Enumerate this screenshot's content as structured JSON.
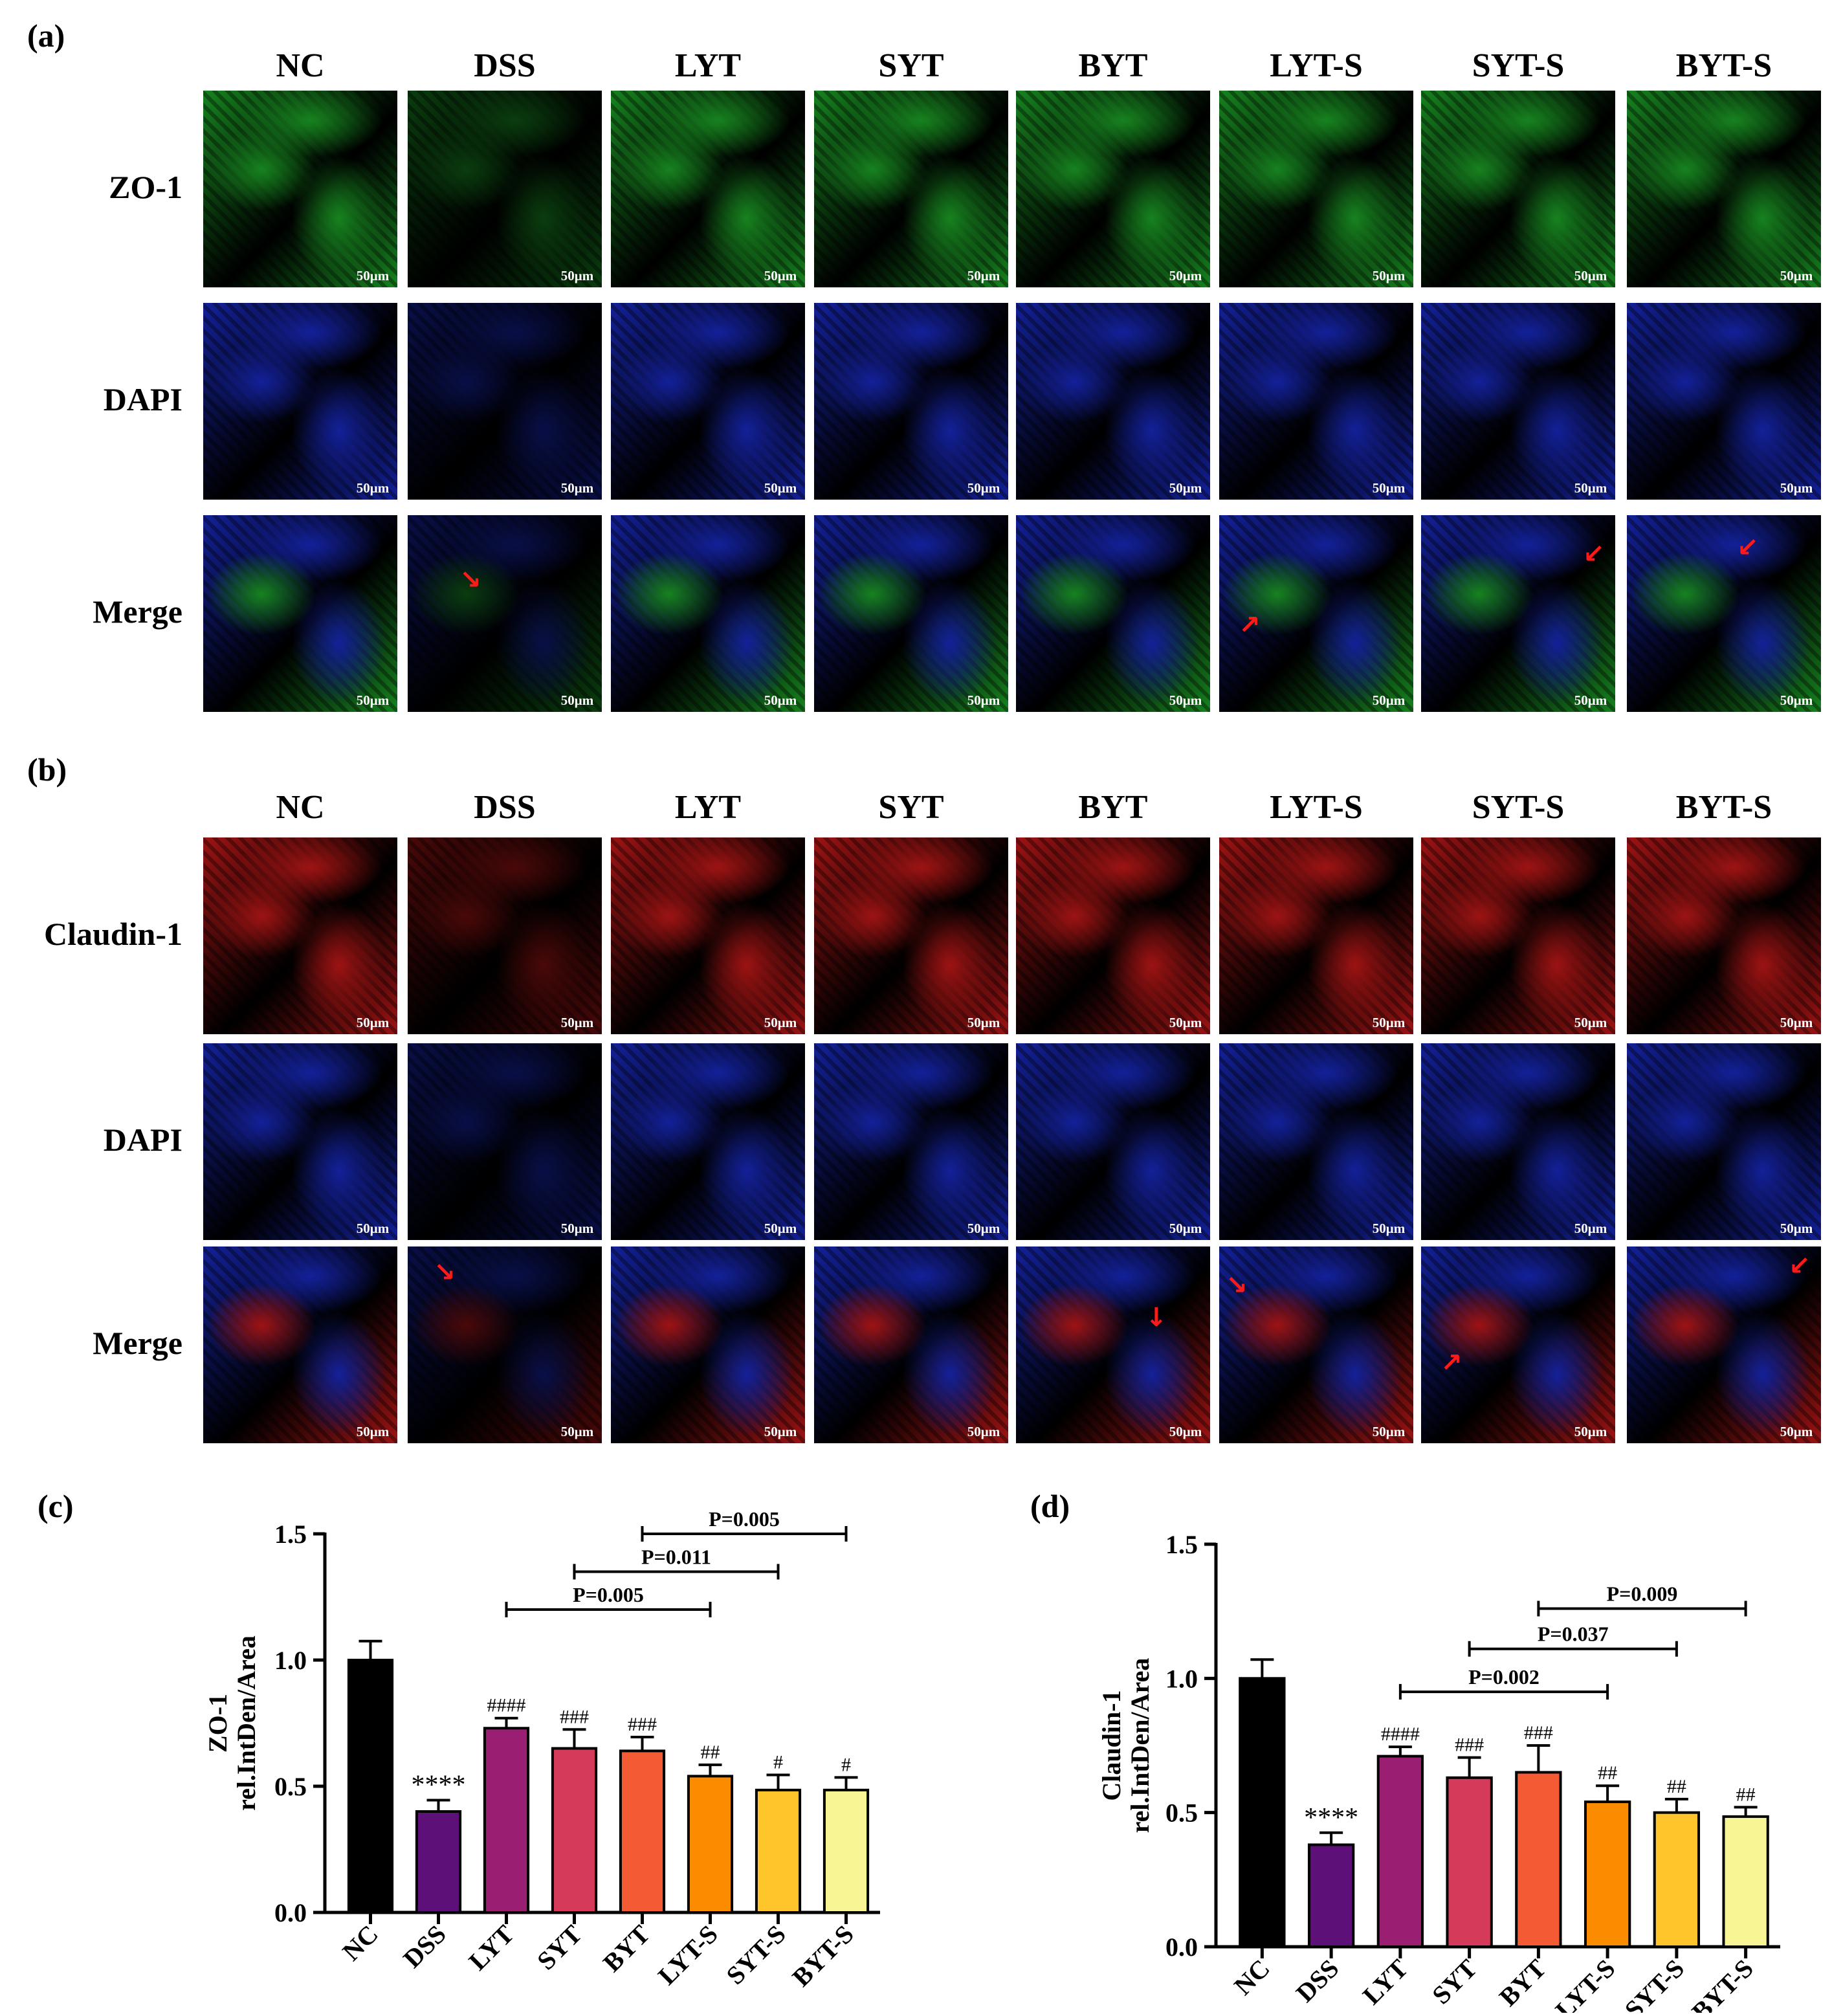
{
  "panel_a": {
    "letter": "(a)",
    "columns": [
      "NC",
      "DSS",
      "LYT",
      "SYT",
      "BYT",
      "LYT-S",
      "SYT-S",
      "BYT-S"
    ],
    "rows": [
      "ZO-1",
      "DAPI",
      "Merge"
    ],
    "stain_colors": [
      "#1fae2a",
      "#1a2ccc",
      "#1a5ad0"
    ]
  },
  "panel_b": {
    "letter": "(b)",
    "columns": [
      "NC",
      "DSS",
      "LYT",
      "SYT",
      "BYT",
      "LYT-S",
      "SYT-S",
      "BYT-S"
    ],
    "rows": [
      "Claudin-1",
      "DAPI",
      "Merge"
    ],
    "stain_colors": [
      "#d21a1a",
      "#1a2ccc",
      "#7a22c8"
    ]
  },
  "scale_bar_label": "50μm",
  "chart_data": [
    {
      "type": "bar",
      "panel_letter": "(c)",
      "ylabel_lines": [
        "ZO-1",
        "rel.IntDen/Area"
      ],
      "categories": [
        "NC",
        "DSS",
        "LYT",
        "SYT",
        "BYT",
        "LYT-S",
        "SYT-S",
        "BYT-S"
      ],
      "values": [
        1.0,
        0.4,
        0.73,
        0.65,
        0.64,
        0.54,
        0.485,
        0.485
      ],
      "errors": [
        0.075,
        0.045,
        0.04,
        0.075,
        0.055,
        0.045,
        0.06,
        0.05
      ],
      "colors": [
        "#000000",
        "#5c1078",
        "#9a1f72",
        "#d63a5a",
        "#f45a33",
        "#fb8c00",
        "#ffc52a",
        "#f7f594"
      ],
      "significance": [
        "",
        "****",
        "####",
        "###",
        "###",
        "##",
        "#",
        "#"
      ],
      "yticks": [
        0.0,
        0.5,
        1.0,
        1.5
      ],
      "ylim": [
        0,
        1.5
      ],
      "brackets": [
        {
          "from": 2,
          "to": 5,
          "label": "P=0.005",
          "y": 1.2
        },
        {
          "from": 3,
          "to": 6,
          "label": "P=0.011",
          "y": 1.35
        },
        {
          "from": 4,
          "to": 7,
          "label": "P=0.005",
          "y": 1.5
        }
      ]
    },
    {
      "type": "bar",
      "panel_letter": "(d)",
      "ylabel_lines": [
        "Claudin-1",
        "rel.IntDen/Area"
      ],
      "categories": [
        "NC",
        "DSS",
        "LYT",
        "SYT",
        "BYT",
        "LYT-S",
        "SYT-S",
        "BYT-S"
      ],
      "values": [
        1.0,
        0.38,
        0.71,
        0.63,
        0.65,
        0.54,
        0.5,
        0.485
      ],
      "errors": [
        0.07,
        0.045,
        0.035,
        0.075,
        0.1,
        0.06,
        0.05,
        0.035
      ],
      "colors": [
        "#000000",
        "#5c1078",
        "#9a1f72",
        "#d63a5a",
        "#f45a33",
        "#fb8c00",
        "#ffc52a",
        "#f7f594"
      ],
      "significance": [
        "",
        "****",
        "####",
        "###",
        "###",
        "##",
        "##",
        "##"
      ],
      "yticks": [
        0.0,
        0.5,
        1.0,
        1.5
      ],
      "ylim": [
        0,
        1.5
      ],
      "brackets": [
        {
          "from": 2,
          "to": 5,
          "label": "P=0.002",
          "y": 0.95
        },
        {
          "from": 3,
          "to": 6,
          "label": "P=0.037",
          "y": 1.11
        },
        {
          "from": 4,
          "to": 7,
          "label": "P=0.009",
          "y": 1.26
        }
      ]
    }
  ]
}
